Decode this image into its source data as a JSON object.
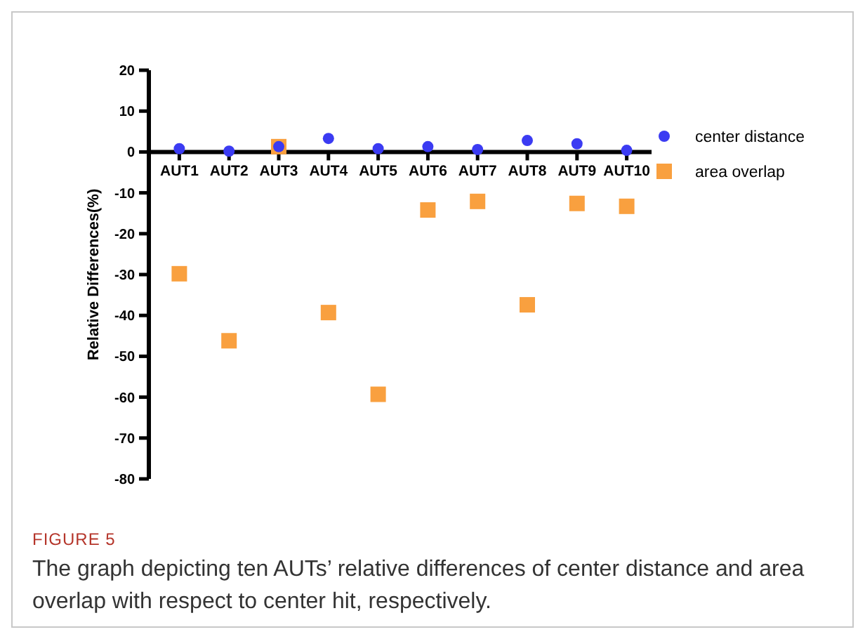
{
  "chart_data": {
    "type": "scatter",
    "ylabel": "Relative Differences(%)",
    "categories": [
      "AUT1",
      "AUT2",
      "AUT3",
      "AUT4",
      "AUT5",
      "AUT6",
      "AUT7",
      "AUT8",
      "AUT9",
      "AUT10"
    ],
    "series": [
      {
        "name": "center distance",
        "color": "#3b3bf2",
        "marker": "circle",
        "values": [
          0.8,
          0.2,
          1.3,
          3.3,
          0.8,
          1.3,
          0.6,
          2.8,
          2.0,
          0.4
        ]
      },
      {
        "name": "area overlap",
        "color": "#f9a03f",
        "marker": "square",
        "values": [
          -29.8,
          -46.2,
          1.3,
          -39.3,
          -59.3,
          -14.2,
          -12.1,
          -37.4,
          -12.6,
          -13.3
        ]
      }
    ],
    "ylim": [
      -80,
      20
    ],
    "yticks": [
      -80,
      -70,
      -60,
      -50,
      -40,
      -30,
      -20,
      -10,
      0,
      10,
      20
    ],
    "legend": "right",
    "grid": false,
    "annotations": [
      "FIGURE 5",
      "The graph depicting ten AUTs’ relative differences of center distance and area overlap with respect to center hit, respectively."
    ]
  }
}
